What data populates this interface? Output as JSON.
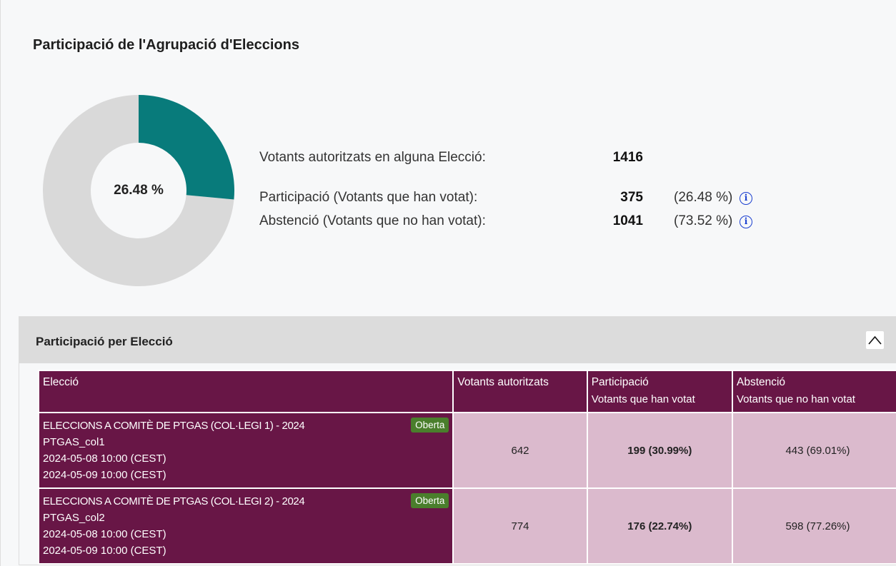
{
  "title": "Participació de l'Agrupació d'Eleccions",
  "donut": {
    "center_label": "26.48 %",
    "participation_pct": 26.48,
    "colors": {
      "participation": "#087b7b",
      "abstention": "#d9d9d9"
    }
  },
  "stats": {
    "authorized": {
      "label": "Votants autoritzats en alguna Elecció:",
      "value": "1416"
    },
    "participation": {
      "label": "Participació (Votants que han votat):",
      "value": "375",
      "pct": "(26.48 %)"
    },
    "abstention": {
      "label": "Abstenció (Votants que no han votat):",
      "value": "1041",
      "pct": "(73.52 %)"
    }
  },
  "panel": {
    "title": "Participació per Elecció",
    "headers": {
      "election": "Elecció",
      "authorized": "Votants autoritzats",
      "participation": "Participació",
      "participation_sub": "Votants que han votat",
      "abstention": "Abstenció",
      "abstention_sub": "Votants que no han votat"
    },
    "rows": [
      {
        "name": "ELECCIONS A COMITÈ DE PTGAS (COL·LEGI 1) - 2024",
        "code": "PTGAS_col1",
        "start": "2024-05-08 10:00 (CEST)",
        "end": "2024-05-09 10:00 (CEST)",
        "status": "Oberta",
        "authorized": "642",
        "participation": "199 (30.99%)",
        "abstention": "443 (69.01%)"
      },
      {
        "name": "ELECCIONS A COMITÈ DE PTGAS (COL·LEGI 2) - 2024",
        "code": "PTGAS_col2",
        "start": "2024-05-08 10:00 (CEST)",
        "end": "2024-05-09 10:00 (CEST)",
        "status": "Oberta",
        "authorized": "774",
        "participation": "176 (22.74%)",
        "abstention": "598 (77.26%)"
      }
    ]
  }
}
